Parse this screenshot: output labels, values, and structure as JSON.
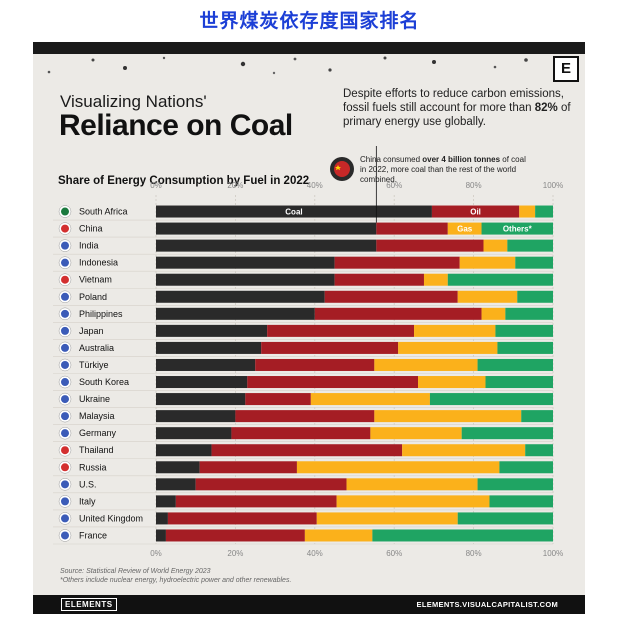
{
  "header": {
    "chinese_title": "世界煤炭依存度国家排名"
  },
  "infographic": {
    "subtitle": "Visualizing Nations'",
    "title": "Reliance on Coal",
    "logo_letter": "E",
    "note_pre": "Despite efforts to reduce carbon emissions, fossil fuels still account for more than ",
    "note_bold": "82%",
    "note_post": " of primary energy use globally.",
    "china_note_pre": "China consumed ",
    "china_note_bold": "over 4 billion tonnes",
    "china_note_post": " of coal in 2022, more coal than the rest of the world combined.",
    "source": "Source: Statistical Review of World Energy 2023",
    "footnote": "*Others include nuclear energy, hydroelectric power and other renewables.",
    "brand_left": "ELEMENTS",
    "brand_right": "ELEMENTS.VISUALCAPITALIST.COM"
  },
  "colors": {
    "coal": "#2a2a2a",
    "oil": "#a51d24",
    "gas": "#fbb11b",
    "others": "#1fa463",
    "title_blue": "#1c3fd6"
  },
  "chart_data": {
    "type": "bar",
    "orientation": "horizontal",
    "stacked": true,
    "title": "Share of Energy Consumption by Fuel in 2022",
    "xlim": [
      0,
      100
    ],
    "x_ticks": [
      "0%",
      "20%",
      "40%",
      "60%",
      "80%",
      "100%"
    ],
    "segment_labels": [
      "Coal",
      "Oil",
      "Gas",
      "Others*"
    ],
    "categories": [
      "South Africa",
      "China",
      "India",
      "Indonesia",
      "Vietnam",
      "Poland",
      "Philippines",
      "Japan",
      "Australia",
      "Türkiye",
      "South Korea",
      "Ukraine",
      "Malaysia",
      "Germany",
      "Thailand",
      "Russia",
      "U.S.",
      "Italy",
      "United Kingdom",
      "France"
    ],
    "series": [
      {
        "name": "Coal",
        "values": [
          69.5,
          55.5,
          55.5,
          45,
          45,
          42.5,
          40,
          28,
          26.5,
          25,
          23,
          22.5,
          20,
          19,
          14,
          11,
          10,
          5,
          3,
          2.5
        ]
      },
      {
        "name": "Oil",
        "values": [
          22,
          18,
          27,
          31.5,
          22.5,
          33.5,
          42,
          37,
          34.5,
          30,
          43,
          16.5,
          35,
          35,
          48,
          24.5,
          38,
          40.5,
          37.5,
          35
        ]
      },
      {
        "name": "Gas",
        "values": [
          4,
          8.5,
          6,
          14,
          6,
          15,
          6,
          20.5,
          25,
          26,
          17,
          30,
          37,
          23,
          31,
          51,
          33,
          38.5,
          35.5,
          17
        ]
      },
      {
        "name": "Others*",
        "values": [
          4.5,
          18,
          11.5,
          9.5,
          26.5,
          9,
          12,
          14.5,
          14,
          19,
          17,
          31,
          8,
          23,
          7,
          13.5,
          19,
          16,
          24,
          45.5
        ]
      }
    ]
  }
}
